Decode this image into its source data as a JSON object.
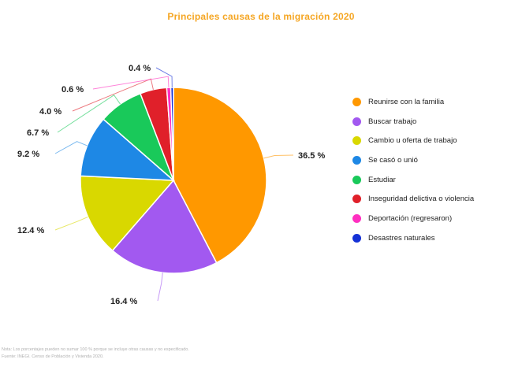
{
  "chart_data": {
    "type": "pie",
    "title": "Principales causas de la migración 2020",
    "categories": [
      "Reunirse con la familia",
      "Buscar trabajo",
      "Cambio u oferta de trabajo",
      "Se casó o unió",
      "Estudiar",
      "Inseguridad delictiva o violencia",
      "Deportación (regresaron)",
      "Desastres naturales"
    ],
    "values": [
      36.5,
      16.4,
      12.4,
      9.2,
      6.7,
      4.0,
      0.6,
      0.4
    ],
    "data_labels": [
      "36.5 %",
      "16.4 %",
      "12.4 %",
      "9.2 %",
      "6.7 %",
      "4.0 %",
      "0.6 %",
      "0.4 %"
    ],
    "colors": [
      "#ff9800",
      "#a259f0",
      "#d9d800",
      "#1e88e5",
      "#19c95a",
      "#e0202a",
      "#ff2fc0",
      "#1531d6"
    ],
    "legend_position": "right"
  },
  "footnotes": {
    "note": "Nota: Los porcentajes pueden no sumar 100 % porque se incluye otras causas y no especificado.",
    "source": "Fuente:     INEGI. Censo de Población y Vivienda 2020."
  }
}
